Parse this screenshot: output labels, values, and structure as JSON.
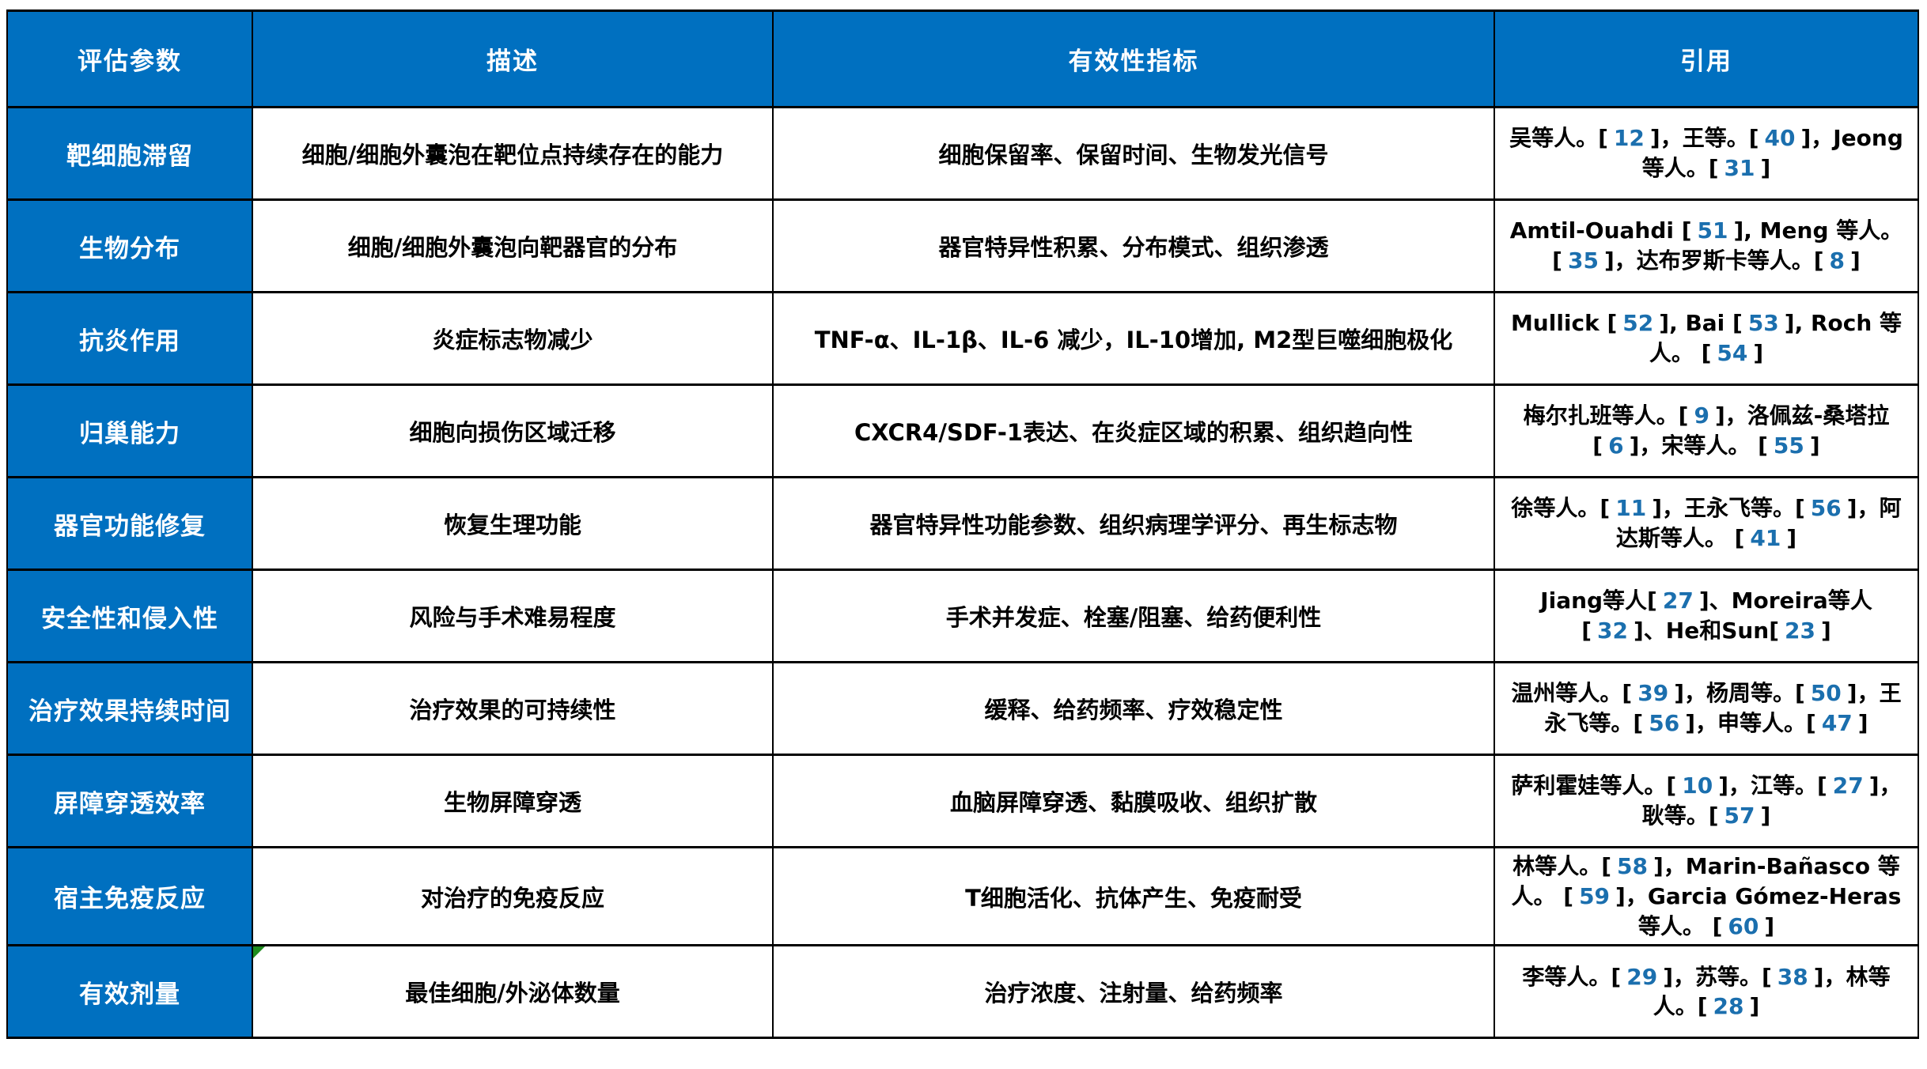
{
  "table": {
    "headers": [
      "评估参数",
      "描述",
      "有效性指标",
      "引用"
    ],
    "rows": [
      {
        "param": "靶细胞滞留",
        "description": "细胞/细胞外囊泡在靶位点持续存在的能力",
        "indicators": "细胞保留率、保留时间、生物发光信号",
        "citation": "吴等人。[12]，王等。[40]，Jeong 等人。[31]"
      },
      {
        "param": "生物分布",
        "description": "细胞/细胞外囊泡向靶器官的分布",
        "indicators": "器官特异性积累、分布模式、组织渗透",
        "citation": "Amtil-Ouahdi [51], Meng 等人。[35]，达布罗斯卡等人。[8]"
      },
      {
        "param": "抗炎作用",
        "description": "炎症标志物减少",
        "indicators": "TNF-α、IL-1β、IL-6 减少，IL-10增加, M2型巨噬细胞极化",
        "citation": "Mullick [52], Bai [53], Roch 等人。 [54]"
      },
      {
        "param": "归巢能力",
        "description": "细胞向损伤区域迁移",
        "indicators": "CXCR4/SDF-1表达、在炎症区域的积累、组织趋向性",
        "citation": "梅尔扎班等人。[9]，洛佩兹-桑塔拉[6]，宋等人。 [55]"
      },
      {
        "param": "器官功能修复",
        "description": "恢复生理功能",
        "indicators": "器官特异性功能参数、组织病理学评分、再生标志物",
        "citation": "徐等人。[11]，王永飞等。[56]，阿达斯等人。 [41]"
      },
      {
        "param": "安全性和侵入性",
        "description": "风险与手术难易程度",
        "indicators": "手术并发症、栓塞/阻塞、给药便利性",
        "citation": "Jiang等人[27]、Moreira等人[32]、He和Sun[23]"
      },
      {
        "param": "治疗效果持续时间",
        "description": "治疗效果的可持续性",
        "indicators": "缓释、给药频率、疗效稳定性",
        "citation": "温州等人。[39]，杨周等。[50]，王永飞等。[56]，申等人。[47]"
      },
      {
        "param": "屏障穿透效率",
        "description": "生物屏障穿透",
        "indicators": "血脑屏障穿透、黏膜吸收、组织扩散",
        "citation": "萨利霍娃等人。[10]，江等。[27]，耿等。[57]"
      },
      {
        "param": "宿主免疫反应",
        "description": "对治疗的免疫反应",
        "indicators": "T细胞活化、抗体产生、免疫耐受",
        "citation": "林等人。[58]，Marin-Bañasco 等人。 [59]，Garcia Gómez-Heras 等人。 [60]"
      },
      {
        "param": "有效剂量",
        "description": "最佳细胞/外泌体数量",
        "indicators": "治疗浓度、注射量、给药频率",
        "citation": "李等人。[29]，苏等。[38]，林等人。[28]"
      }
    ]
  },
  "colors": {
    "header_background": "#0070C0",
    "header_text": "#FFFFFF",
    "body_text": "#000000",
    "reference_number": "#1B6FAE",
    "border": "#000000",
    "comment_marker_green": "#1E8C1E"
  }
}
